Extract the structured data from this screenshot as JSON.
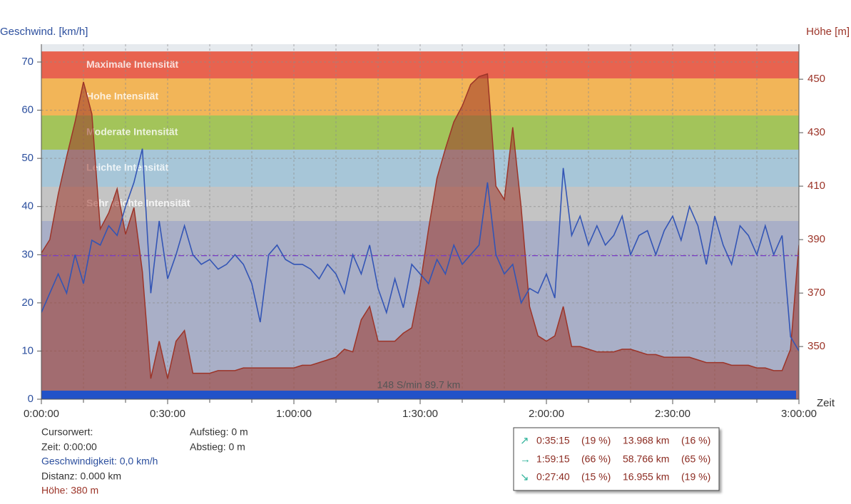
{
  "chart_data": {
    "type": "line",
    "y_label": "Geschwind. [km/h]",
    "y2_label": "Höhe [m]",
    "x_label": "Zeit",
    "x": [
      0,
      2,
      4,
      6,
      8,
      10,
      12,
      14,
      16,
      18,
      20,
      22,
      24,
      26,
      28,
      30,
      32,
      34,
      36,
      38,
      40,
      42,
      44,
      46,
      48,
      50,
      52,
      54,
      56,
      58,
      60,
      62,
      64,
      66,
      68,
      70,
      72,
      74,
      76,
      78,
      80,
      82,
      84,
      86,
      88,
      90,
      92,
      94,
      96,
      98,
      100,
      102,
      104,
      106,
      108,
      110,
      112,
      114,
      116,
      118,
      120,
      122,
      124,
      126,
      128,
      130,
      132,
      134,
      136,
      138,
      140,
      142,
      144,
      146,
      148,
      150,
      152,
      154,
      156,
      158,
      160,
      162,
      164,
      166,
      168,
      170,
      172,
      174,
      176,
      178,
      180
    ],
    "xlim": [
      0,
      180
    ],
    "xticks": [
      {
        "value": 0,
        "label": "0:00:00"
      },
      {
        "value": 30,
        "label": "0:30:00"
      },
      {
        "value": 60,
        "label": "1:00:00"
      },
      {
        "value": 90,
        "label": "1:30:00"
      },
      {
        "value": 120,
        "label": "2:00:00"
      },
      {
        "value": 150,
        "label": "2:30:00"
      },
      {
        "value": 180,
        "label": "3:00:00"
      }
    ],
    "xgrid": [
      10,
      20,
      30,
      40,
      50,
      60,
      70,
      80,
      90,
      100,
      110,
      120,
      130,
      140,
      150,
      160,
      170
    ],
    "ylim": [
      0,
      73.7
    ],
    "yticks": [
      0,
      10,
      20,
      30,
      40,
      50,
      60,
      70
    ],
    "y2lim": [
      330.3,
      463.1
    ],
    "y2ticks": [
      350,
      370,
      390,
      410,
      430,
      450
    ],
    "grid": true,
    "series": [
      {
        "color": "#3355b5",
        "values": [
          18,
          22,
          26,
          22,
          30,
          24,
          33,
          32,
          36,
          34,
          40,
          45,
          52,
          22,
          37,
          25,
          30,
          36,
          30,
          28,
          29,
          27,
          28,
          30,
          28,
          24,
          16,
          30,
          32,
          29,
          28,
          28,
          27,
          25,
          28,
          26,
          22,
          30,
          26,
          32,
          23,
          18,
          25,
          19,
          28,
          26,
          24,
          29,
          26,
          32,
          28,
          30,
          32,
          45,
          30,
          26,
          28,
          20,
          23,
          22,
          26,
          21,
          48,
          34,
          38,
          32,
          36,
          32,
          34,
          38,
          30,
          34,
          35,
          30,
          35,
          38,
          33,
          40,
          36,
          28,
          38,
          32,
          28,
          36,
          34,
          30,
          36,
          30,
          34,
          13,
          10
        ]
      },
      {
        "color": "#9c3428",
        "axis": "y2",
        "values": [
          385,
          390,
          407,
          421,
          434,
          449,
          437,
          394,
          400,
          409,
          392,
          402,
          378,
          338,
          352,
          338,
          352,
          356,
          340,
          340,
          340,
          341,
          341,
          341,
          342,
          342,
          342,
          342,
          342,
          342,
          342,
          343,
          343,
          344,
          345,
          346,
          349,
          348,
          360,
          365,
          352,
          352,
          352,
          355,
          357,
          373,
          394,
          413,
          424,
          434,
          440,
          448,
          451,
          452,
          410,
          405,
          432,
          402,
          365,
          354,
          352,
          354,
          365,
          350,
          350,
          349,
          348,
          348,
          348,
          349,
          349,
          348,
          347,
          347,
          346,
          346,
          346,
          346,
          345,
          344,
          344,
          344,
          343,
          343,
          343,
          342,
          342,
          341,
          341,
          349,
          388
        ]
      }
    ],
    "zones": [
      {
        "label": "Maximale Intensität",
        "from": 66.6,
        "to": 72.2,
        "color": "#e8634f"
      },
      {
        "label": "Hohe Intensität",
        "from": 58.9,
        "to": 66.6,
        "color": "#f2b558"
      },
      {
        "label": "Moderate Intensität",
        "from": 51.8,
        "to": 58.9,
        "color": "#a3c45a"
      },
      {
        "label": "Leichte Intensität",
        "from": 44.1,
        "to": 51.8,
        "color": "#a7c6d8"
      },
      {
        "label": "Sehr leichte Intensität",
        "from": 37.0,
        "to": 44.1,
        "color": "#c4c4c4"
      }
    ],
    "reference_line": {
      "value": 29.8,
      "color": "#7a3cc8"
    },
    "annotation": "148 S/min 89.7 km"
  },
  "info": {
    "heading": "Cursorwert:",
    "time": "Zeit: 0:00:00",
    "speed": "Geschwindigkeit: 0,0 km/h",
    "distance": "Distanz: 0.000 km",
    "elevation": "Höhe:  380 m",
    "ascent": "Aufstieg: 0 m",
    "descent": "Abstieg: 0 m"
  },
  "summary": {
    "rows": [
      [
        "0:35:15",
        "(19 %)",
        "13.968 km",
        "(16 %)"
      ],
      [
        "1:59:15",
        "(66 %)",
        "58.766 km",
        "(65 %)"
      ],
      [
        "0:27:40",
        "(15 %)",
        "16.955 km",
        "(19 %)"
      ]
    ]
  }
}
